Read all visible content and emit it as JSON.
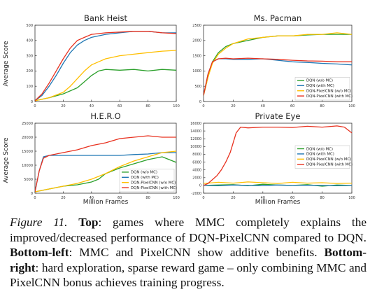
{
  "figure": {
    "ylabel": "Average Score",
    "xlabel": "Million Frames"
  },
  "caption": {
    "label": "Figure 11.",
    "part1_bold": "Top",
    "part1_text": ": games where MMC completely explains the improved/decreased performance of DQN-PixelCNN compared to DQN. ",
    "part2_bold": "Bottom-left",
    "part2_text": ": MMC and PixelCNN show additive benefits. ",
    "part3_bold": "Bottom-right",
    "part3_text": ": hard exploration, sparse reward game – only combining MMC and PixelCNN bonus achieves training progress."
  },
  "colors": {
    "dqn_no_mc": "#2ca02c",
    "dqn_mc": "#1f77b4",
    "pixelcnn_no_mc": "#ffbf00",
    "pixelcnn_mc": "#e8311f"
  },
  "chart_data": [
    {
      "type": "line",
      "title": "Bank Heist",
      "xlim": [
        0,
        100
      ],
      "ylim": [
        0,
        500
      ],
      "xticks": [
        0,
        20,
        40,
        60,
        80,
        100
      ],
      "yticks": [
        0,
        100,
        200,
        300,
        400,
        500
      ],
      "series": [
        {
          "name": "DQN (w/o MC)",
          "color": "#2ca02c",
          "x": [
            0,
            10,
            20,
            30,
            35,
            40,
            45,
            50,
            60,
            70,
            80,
            90,
            100
          ],
          "y": [
            5,
            25,
            50,
            90,
            130,
            170,
            200,
            210,
            205,
            210,
            200,
            210,
            205
          ]
        },
        {
          "name": "DQN (with MC)",
          "color": "#1f77b4",
          "x": [
            0,
            5,
            10,
            15,
            20,
            25,
            30,
            35,
            40,
            45,
            50,
            60,
            70,
            80,
            90,
            100
          ],
          "y": [
            5,
            40,
            100,
            170,
            250,
            320,
            370,
            400,
            420,
            430,
            440,
            450,
            460,
            460,
            450,
            450
          ]
        },
        {
          "name": "DQN-PixelCNN (w/o MC)",
          "color": "#ffbf00",
          "x": [
            0,
            10,
            20,
            25,
            30,
            35,
            40,
            45,
            50,
            60,
            70,
            80,
            90,
            100
          ],
          "y": [
            5,
            25,
            60,
            100,
            150,
            200,
            240,
            260,
            280,
            300,
            310,
            320,
            330,
            335
          ]
        },
        {
          "name": "DQN-PixelCNN (with MC)",
          "color": "#e8311f",
          "x": [
            0,
            5,
            10,
            15,
            20,
            25,
            30,
            35,
            40,
            50,
            60,
            70,
            80,
            90,
            100
          ],
          "y": [
            5,
            50,
            120,
            200,
            280,
            350,
            400,
            420,
            440,
            450,
            455,
            460,
            460,
            450,
            445
          ]
        }
      ]
    },
    {
      "type": "line",
      "title": "Ms. Pacman",
      "xlim": [
        0,
        100
      ],
      "ylim": [
        0,
        2500
      ],
      "xticks": [
        0,
        20,
        40,
        60,
        80,
        100
      ],
      "yticks": [
        0,
        500,
        1000,
        1500,
        2000,
        2500
      ],
      "legend": {
        "loc": "lower-right",
        "entries": [
          "DQN (w/o MC)",
          "DQN (with MC)",
          "DQN-PixelCNN (w/o MC)",
          "DQN-PixelCNN (with MC)"
        ]
      },
      "series": [
        {
          "name": "DQN (w/o MC)",
          "color": "#2ca02c",
          "x": [
            0,
            3,
            6,
            10,
            15,
            20,
            30,
            40,
            50,
            60,
            70,
            80,
            90,
            100
          ],
          "y": [
            200,
            800,
            1300,
            1600,
            1800,
            1900,
            2000,
            2100,
            2150,
            2150,
            2180,
            2200,
            2200,
            2200
          ]
        },
        {
          "name": "DQN (with MC)",
          "color": "#1f77b4",
          "x": [
            0,
            3,
            6,
            10,
            15,
            20,
            30,
            40,
            50,
            60,
            70,
            80,
            90,
            100
          ],
          "y": [
            200,
            900,
            1300,
            1400,
            1400,
            1380,
            1380,
            1400,
            1350,
            1300,
            1280,
            1250,
            1230,
            1200
          ]
        },
        {
          "name": "DQN-PixelCNN (w/o MC)",
          "color": "#ffbf00",
          "x": [
            0,
            3,
            6,
            10,
            15,
            20,
            30,
            40,
            50,
            60,
            70,
            80,
            90,
            100
          ],
          "y": [
            200,
            800,
            1250,
            1550,
            1750,
            1900,
            2050,
            2100,
            2150,
            2150,
            2200,
            2200,
            2250,
            2200
          ]
        },
        {
          "name": "DQN-PixelCNN (with MC)",
          "color": "#e8311f",
          "x": [
            0,
            3,
            6,
            10,
            15,
            20,
            30,
            40,
            50,
            60,
            70,
            80,
            90,
            100
          ],
          "y": [
            200,
            900,
            1300,
            1400,
            1420,
            1400,
            1420,
            1400,
            1380,
            1350,
            1330,
            1320,
            1300,
            1300
          ]
        }
      ]
    },
    {
      "type": "line",
      "title": "H.E.R.O",
      "xlim": [
        0,
        100
      ],
      "ylim": [
        0,
        25000
      ],
      "xticks": [
        0,
        20,
        40,
        60,
        80,
        100
      ],
      "yticks": [
        0,
        5000,
        10000,
        15000,
        20000,
        25000
      ],
      "legend": {
        "loc": "lower-right",
        "entries": [
          "DQN (w/o MC)",
          "DQN (with MC)",
          "DQN-PixelCNN (w/o MC)",
          "DQN-PixelCNN (with MC)"
        ]
      },
      "series": [
        {
          "name": "DQN (w/o MC)",
          "color": "#2ca02c",
          "x": [
            0,
            10,
            20,
            30,
            40,
            45,
            50,
            60,
            70,
            80,
            90,
            100
          ],
          "y": [
            500,
            1500,
            2500,
            3000,
            4000,
            5000,
            7000,
            9000,
            10500,
            12000,
            13000,
            11000
          ]
        },
        {
          "name": "DQN (with MC)",
          "color": "#1f77b4",
          "x": [
            0,
            3,
            6,
            10,
            20,
            30,
            40,
            50,
            60,
            70,
            80,
            90,
            100
          ],
          "y": [
            500,
            8000,
            13000,
            13500,
            13500,
            13500,
            13500,
            13500,
            13500,
            13800,
            14000,
            14500,
            14500
          ]
        },
        {
          "name": "DQN-PixelCNN (w/o MC)",
          "color": "#ffbf00",
          "x": [
            0,
            10,
            20,
            30,
            40,
            50,
            60,
            70,
            80,
            90,
            100
          ],
          "y": [
            500,
            1500,
            2500,
            3500,
            5000,
            7000,
            9500,
            11500,
            13000,
            14500,
            15000
          ]
        },
        {
          "name": "DQN-PixelCNN (with MC)",
          "color": "#e8311f",
          "x": [
            0,
            3,
            6,
            10,
            20,
            30,
            40,
            50,
            60,
            70,
            80,
            90,
            100
          ],
          "y": [
            500,
            8000,
            12500,
            13500,
            14500,
            15500,
            17000,
            18000,
            19500,
            20000,
            20500,
            20000,
            20000
          ]
        }
      ]
    },
    {
      "type": "line",
      "title": "Private Eye",
      "xlim": [
        0,
        100
      ],
      "ylim": [
        -2000,
        16000
      ],
      "xticks": [
        0,
        20,
        40,
        60,
        80,
        100
      ],
      "yticks": [
        -2000,
        0,
        2000,
        4000,
        6000,
        8000,
        10000,
        12000,
        14000,
        16000
      ],
      "legend": {
        "loc": "center-right",
        "entries": [
          "DQN (w/o MC)",
          "DQN (with MC)",
          "DQN-PixelCNN (w/o MC)",
          "DQN-PixelCNN (with MC)"
        ]
      },
      "series": [
        {
          "name": "DQN (w/o MC)",
          "color": "#2ca02c",
          "x": [
            0,
            10,
            20,
            30,
            40,
            50,
            60,
            70,
            80,
            90,
            100
          ],
          "y": [
            0,
            100,
            200,
            -100,
            300,
            100,
            0,
            200,
            -200,
            100,
            0
          ]
        },
        {
          "name": "DQN (with MC)",
          "color": "#1f77b4",
          "x": [
            0,
            10,
            20,
            30,
            40,
            50,
            60,
            70,
            80,
            90,
            100
          ],
          "y": [
            0,
            -100,
            100,
            0,
            -50,
            100,
            0,
            50,
            0,
            -100,
            0
          ]
        },
        {
          "name": "DQN-PixelCNN (w/o MC)",
          "color": "#ffbf00",
          "x": [
            0,
            10,
            20,
            30,
            40,
            50,
            60,
            70,
            80,
            90,
            100
          ],
          "y": [
            500,
            800,
            600,
            900,
            700,
            500,
            800,
            600,
            700,
            500,
            600
          ]
        },
        {
          "name": "DQN-PixelCNN (with MC)",
          "color": "#e8311f",
          "x": [
            0,
            3,
            6,
            9,
            12,
            15,
            18,
            20,
            22,
            25,
            30,
            40,
            50,
            60,
            70,
            80,
            90,
            95,
            100
          ],
          "y": [
            0,
            500,
            1500,
            2500,
            4000,
            6000,
            8500,
            11000,
            13500,
            15000,
            14800,
            15000,
            15000,
            14900,
            15200,
            15000,
            15300,
            15000,
            13500
          ]
        }
      ]
    }
  ]
}
